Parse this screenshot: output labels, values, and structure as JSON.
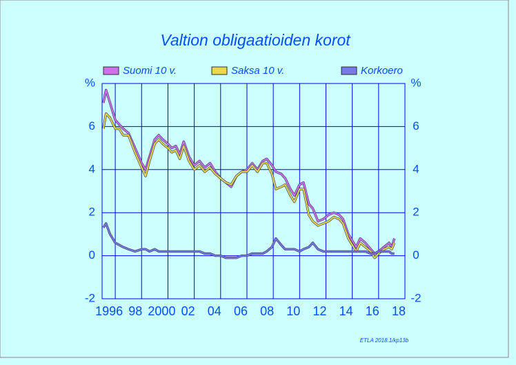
{
  "chart_data": {
    "type": "line",
    "title": "Valtion  obligaatioiden  korot",
    "annotation": "ETLA 2018.1/kp13b",
    "xlim": [
      1995,
      2018
    ],
    "xticks": [
      1996,
      {
        "value": 1998,
        "label": "98"
      },
      2000,
      {
        "value": 2002,
        "label": "02"
      },
      {
        "value": 2004,
        "label": "04"
      },
      {
        "value": 2006,
        "label": "06"
      },
      {
        "value": 2008,
        "label": "08"
      },
      {
        "value": 2010,
        "label": "10"
      },
      {
        "value": 2012,
        "label": "12"
      },
      {
        "value": 2014,
        "label": "14"
      },
      {
        "value": 2016,
        "label": "16"
      },
      {
        "value": 2018,
        "label": "18"
      }
    ],
    "ylim": [
      -2,
      8
    ],
    "yticks": [
      -2,
      0,
      2,
      4,
      6,
      {
        "value": 8,
        "label": "%"
      }
    ],
    "grid": true,
    "legend": "top",
    "x": [
      1995.1,
      1995.3,
      1995.6,
      1996.0,
      1996.3,
      1996.6,
      1997.0,
      1997.5,
      1998.0,
      1998.3,
      1998.6,
      1999.0,
      1999.3,
      1999.6,
      2000.0,
      2000.3,
      2000.6,
      2000.9,
      2001.2,
      2001.6,
      2002.0,
      2002.4,
      2002.8,
      2003.2,
      2003.6,
      2004.0,
      2004.4,
      2004.8,
      2005.2,
      2005.6,
      2006.0,
      2006.4,
      2006.8,
      2007.2,
      2007.5,
      2007.9,
      2008.2,
      2008.6,
      2008.9,
      2009.3,
      2009.6,
      2010.0,
      2010.3,
      2010.7,
      2011.0,
      2011.4,
      2011.8,
      2012.2,
      2012.6,
      2013.0,
      2013.3,
      2013.7,
      2014.0,
      2014.3,
      2014.6,
      2015.0,
      2015.4,
      2015.7,
      2016.0,
      2016.4,
      2016.8,
      2017.0,
      2017.2
    ],
    "series": [
      {
        "name": "Suomi 10 v.",
        "color": "#d070f0",
        "values": [
          7.1,
          7.7,
          7.1,
          6.3,
          6.1,
          5.9,
          5.7,
          5.0,
          4.3,
          4.0,
          4.6,
          5.4,
          5.6,
          5.4,
          5.2,
          5.0,
          5.1,
          4.7,
          5.3,
          4.6,
          4.2,
          4.4,
          4.1,
          4.3,
          3.9,
          3.6,
          3.4,
          3.2,
          3.7,
          3.9,
          4.0,
          4.3,
          4.0,
          4.4,
          4.5,
          4.2,
          3.9,
          3.8,
          3.6,
          3.1,
          2.8,
          3.3,
          3.4,
          2.4,
          2.2,
          1.6,
          1.7,
          1.9,
          2.0,
          1.9,
          1.7,
          1.0,
          0.7,
          0.4,
          0.8,
          0.6,
          0.3,
          0.1,
          0.2,
          0.4,
          0.6,
          0.4,
          0.8
        ]
      },
      {
        "name": "Saksa 10 v.",
        "color": "#e8d84a",
        "values": [
          5.9,
          6.6,
          6.4,
          5.9,
          5.9,
          5.6,
          5.6,
          4.8,
          4.1,
          3.7,
          4.4,
          5.2,
          5.4,
          5.2,
          5.0,
          4.8,
          4.9,
          4.5,
          5.1,
          4.4,
          4.0,
          4.2,
          3.9,
          4.1,
          3.8,
          3.6,
          3.4,
          3.3,
          3.7,
          3.9,
          3.9,
          4.2,
          3.9,
          4.3,
          4.3,
          3.8,
          3.1,
          3.2,
          3.3,
          2.8,
          2.5,
          3.1,
          3.1,
          1.9,
          1.6,
          1.4,
          1.5,
          1.6,
          1.8,
          1.7,
          1.5,
          0.8,
          0.5,
          0.2,
          0.6,
          0.4,
          0.2,
          -0.1,
          0.1,
          0.3,
          0.4,
          0.3,
          0.6
        ]
      },
      {
        "name": "Korkoero",
        "color": "#7878e8",
        "values": [
          1.3,
          1.5,
          1.0,
          0.6,
          0.5,
          0.4,
          0.3,
          0.2,
          0.3,
          0.3,
          0.2,
          0.3,
          0.2,
          0.2,
          0.2,
          0.2,
          0.2,
          0.2,
          0.2,
          0.2,
          0.2,
          0.2,
          0.1,
          0.1,
          0.0,
          0.0,
          -0.1,
          -0.1,
          -0.1,
          0.0,
          0.0,
          0.1,
          0.1,
          0.1,
          0.2,
          0.4,
          0.8,
          0.5,
          0.3,
          0.3,
          0.3,
          0.2,
          0.3,
          0.4,
          0.6,
          0.3,
          0.2,
          0.2,
          0.2,
          0.2,
          0.2,
          0.2,
          0.2,
          0.2,
          0.2,
          0.2,
          0.1,
          0.1,
          0.2,
          0.2,
          0.2,
          0.1,
          0.1
        ]
      }
    ]
  }
}
